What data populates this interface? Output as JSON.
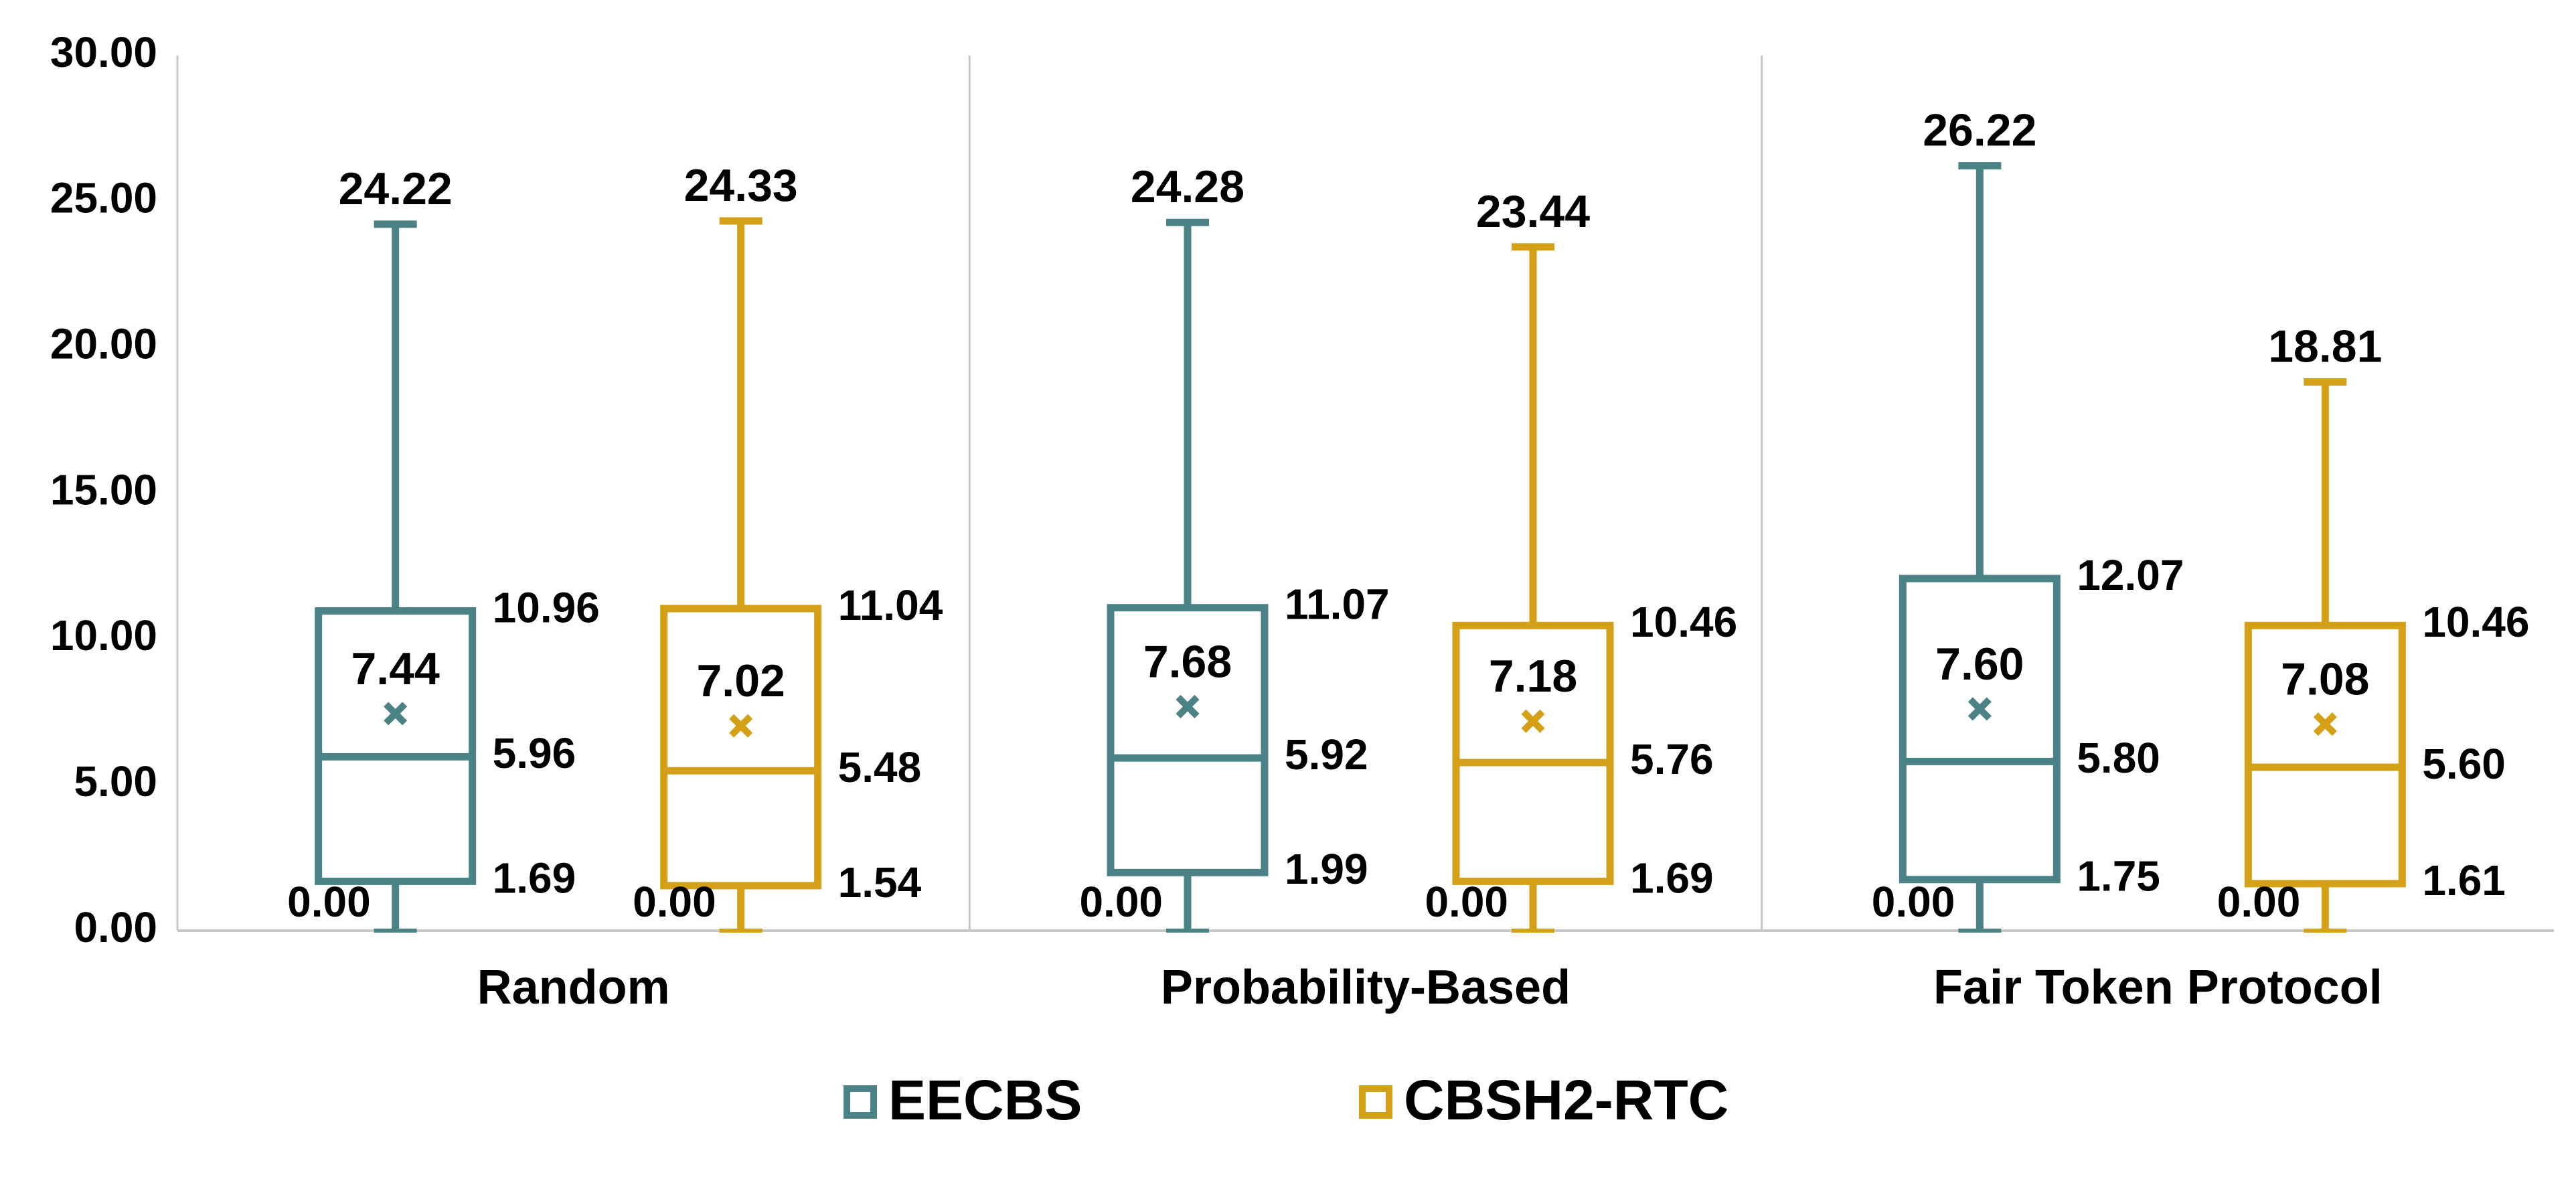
{
  "chart_data": {
    "type": "boxplot",
    "title": "",
    "xlabel": "",
    "ylabel": "",
    "ylim": [
      0,
      30
    ],
    "y_ticks": [
      "0.00",
      "5.00",
      "10.00",
      "15.00",
      "20.00",
      "25.00",
      "30.00"
    ],
    "grid": false,
    "legend_position": "bottom",
    "categories": [
      "Random",
      "Probability-Based",
      "Fair Token Protocol"
    ],
    "series": [
      {
        "name": "EECBS",
        "color": "#4a8285",
        "boxes": [
          {
            "min": 0.0,
            "q1": 1.69,
            "median": 5.96,
            "mean": 7.44,
            "q3": 10.96,
            "max": 24.22,
            "labels": {
              "min": "0.00",
              "q1": "1.69",
              "median": "5.96",
              "mean": "7.44",
              "q3": "10.96",
              "max": "24.22"
            }
          },
          {
            "min": 0.0,
            "q1": 1.99,
            "median": 5.92,
            "mean": 7.68,
            "q3": 11.07,
            "max": 24.28,
            "labels": {
              "min": "0.00",
              "q1": "1.99",
              "median": "5.92",
              "mean": "7.68",
              "q3": "11.07",
              "max": "24.28"
            }
          },
          {
            "min": 0.0,
            "q1": 1.75,
            "median": 5.8,
            "mean": 7.6,
            "q3": 12.07,
            "max": 26.22,
            "labels": {
              "min": "0.00",
              "q1": "1.75",
              "median": "5.80",
              "mean": "7.60",
              "q3": "12.07",
              "max": "26.22"
            }
          }
        ]
      },
      {
        "name": "CBSH2-RTC",
        "color": "#d4a017",
        "boxes": [
          {
            "min": 0.0,
            "q1": 1.54,
            "median": 5.48,
            "mean": 7.02,
            "q3": 11.04,
            "max": 24.33,
            "labels": {
              "min": "0.00",
              "q1": "1.54",
              "median": "5.48",
              "mean": "7.02",
              "q3": "11.04",
              "max": "24.33"
            }
          },
          {
            "min": 0.0,
            "q1": 1.69,
            "median": 5.76,
            "mean": 7.18,
            "q3": 10.46,
            "max": 23.44,
            "labels": {
              "min": "0.00",
              "q1": "1.69",
              "median": "5.76",
              "mean": "7.18",
              "q3": "10.46",
              "max": "23.44"
            }
          },
          {
            "min": 0.0,
            "q1": 1.61,
            "median": 5.6,
            "mean": 7.08,
            "q3": 10.46,
            "max": 18.81,
            "labels": {
              "min": "0.00",
              "q1": "1.61",
              "median": "5.60",
              "mean": "7.08",
              "q3": "10.46",
              "max": "18.81"
            }
          }
        ]
      }
    ]
  }
}
